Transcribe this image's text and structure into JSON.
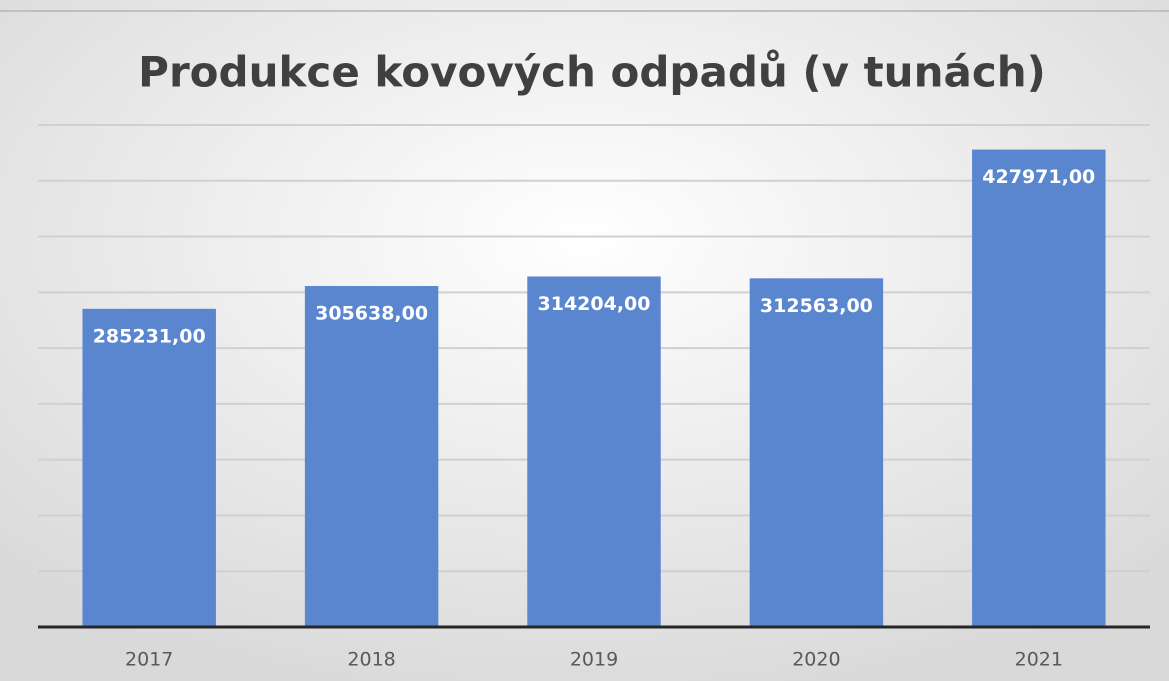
{
  "chart_data": {
    "type": "bar",
    "title": "Produkce kovových odpadů (v tunách)",
    "categories": [
      "2017",
      "2018",
      "2019",
      "2020",
      "2021"
    ],
    "values": [
      285231,
      305638,
      314204,
      312563,
      427971
    ],
    "value_labels": [
      "285231,00",
      "305638,00",
      "314204,00",
      "312563,00",
      "427971,00"
    ],
    "color": "#5a86cf",
    "ylim": [
      0,
      450000
    ],
    "yticks": [
      0,
      50000,
      100000,
      150000,
      200000,
      250000,
      300000,
      350000,
      400000,
      450000
    ],
    "grid": true
  }
}
